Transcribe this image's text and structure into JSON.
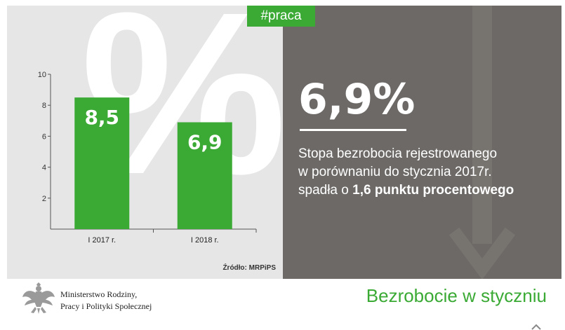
{
  "tag": "#praca",
  "background_glyph": "%",
  "headline": {
    "value": "6,9%"
  },
  "description": {
    "line1": "Stopa bezrobocia rejestrowanego",
    "line2": "w porównaniu do stycznia 2017r.",
    "line3_prefix": "spadła o ",
    "line3_bold": "1,6 punktu procentowego"
  },
  "source": "Źródło: MRPiPS",
  "ministry": {
    "line1": "Ministerstwo Rodziny,",
    "line2": "Pracy i Polityki Społecznej"
  },
  "footer_title": "Bezrobocie w styczniu",
  "colors": {
    "accent": "#3aaa35",
    "dark_panel": "#6c6967",
    "light_panel": "#e6e6e6"
  },
  "icons": [
    "percent-watermark",
    "down-arrow-watermark",
    "polish-eagle-emblem"
  ],
  "chart_data": {
    "type": "bar",
    "categories": [
      "I 2017 r.",
      "I 2018 r."
    ],
    "values": [
      8.5,
      6.9
    ],
    "value_labels": [
      "8,5",
      "6,9"
    ],
    "ylim": [
      0,
      10
    ],
    "yticks": [
      2,
      4,
      6,
      8,
      10
    ],
    "title": "",
    "xlabel": "",
    "ylabel": "",
    "grid": false,
    "bar_color": "#3aaa35"
  }
}
